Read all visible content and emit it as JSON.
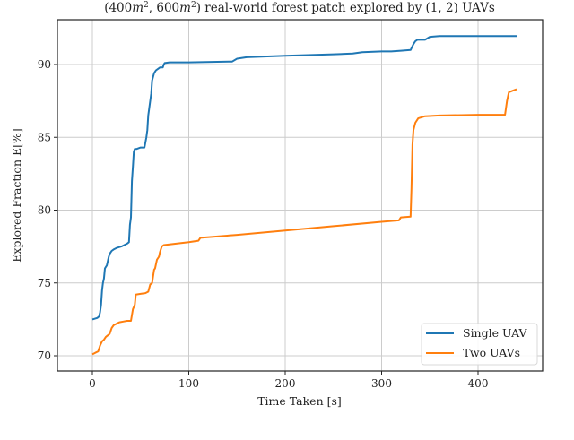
{
  "chart_data": {
    "type": "line",
    "title": "(400m², 600m²) real-world forest patch explored by (1, 2) UAVs",
    "xlabel": "Time Taken [s]",
    "ylabel": "Explored Fraction E[%]",
    "xlim": [
      -20,
      465
    ],
    "ylim": [
      69.0,
      92.7
    ],
    "xticks": [
      0,
      100,
      200,
      300,
      400
    ],
    "yticks": [
      70,
      75,
      80,
      85,
      90
    ],
    "grid": true,
    "legend_position": "lower right",
    "series": [
      {
        "name": "Single UAV",
        "color": "#1f77b4",
        "x": [
          0,
          5,
          7,
          8,
          9,
          10,
          11,
          12,
          13,
          14,
          15,
          17,
          18,
          20,
          22,
          25,
          30,
          33,
          36,
          38,
          39,
          40,
          41,
          42,
          43,
          44,
          46,
          50,
          54,
          56,
          57,
          58,
          60,
          61,
          62,
          64,
          66,
          68,
          70,
          73,
          74,
          75,
          80,
          100,
          145,
          150,
          160,
          200,
          250,
          270,
          280,
          300,
          305,
          310,
          320,
          330,
          333,
          335,
          337,
          345,
          350,
          360,
          400,
          440
        ],
        "y": [
          72.5,
          72.6,
          72.7,
          73.0,
          73.5,
          74.5,
          75.0,
          75.3,
          76.0,
          76.1,
          76.2,
          76.8,
          77.0,
          77.2,
          77.3,
          77.4,
          77.5,
          77.6,
          77.7,
          77.8,
          79.0,
          79.5,
          82.0,
          83.0,
          84.0,
          84.2,
          84.2,
          84.3,
          84.3,
          85.0,
          85.5,
          86.5,
          87.5,
          88.0,
          88.9,
          89.4,
          89.6,
          89.7,
          89.8,
          89.8,
          90.0,
          90.1,
          90.15,
          90.15,
          90.2,
          90.4,
          90.5,
          90.6,
          90.7,
          90.75,
          90.85,
          90.9,
          90.9,
          90.9,
          90.95,
          91.0,
          91.4,
          91.6,
          91.7,
          91.7,
          91.9,
          91.95,
          91.95,
          91.95
        ]
      },
      {
        "name": "Two UAVs",
        "color": "#ff7f0e",
        "x": [
          0,
          3,
          6,
          8,
          10,
          12,
          14,
          16,
          18,
          20,
          22,
          25,
          28,
          32,
          36,
          40,
          42,
          44,
          45,
          50,
          55,
          58,
          60,
          62,
          64,
          65,
          67,
          69,
          70,
          72,
          74,
          80,
          100,
          110,
          112,
          150,
          200,
          250,
          300,
          318,
          320,
          330,
          331,
          332,
          333,
          335,
          338,
          345,
          360,
          400,
          428,
          430,
          432,
          436,
          440
        ],
        "y": [
          70.1,
          70.2,
          70.3,
          70.7,
          71.0,
          71.1,
          71.3,
          71.4,
          71.5,
          71.9,
          72.1,
          72.2,
          72.3,
          72.35,
          72.4,
          72.4,
          73.2,
          73.5,
          74.2,
          74.25,
          74.3,
          74.4,
          74.9,
          75.0,
          75.9,
          76.0,
          76.6,
          76.8,
          77.1,
          77.5,
          77.6,
          77.65,
          77.8,
          77.9,
          78.1,
          78.3,
          78.6,
          78.9,
          79.2,
          79.3,
          79.5,
          79.55,
          81.5,
          84.5,
          85.5,
          86.0,
          86.3,
          86.45,
          86.5,
          86.55,
          86.55,
          87.5,
          88.1,
          88.2,
          88.3
        ]
      }
    ]
  },
  "title": {
    "text_prefix": "(400",
    "m1": "m",
    "sup1": "2",
    "sep": ", 600",
    "m2": "m",
    "sup2": "2",
    "suffix": ") real-world forest patch explored by (1, 2) UAVs"
  },
  "axes": {
    "xlabel": "Time Taken [s]",
    "ylabel": "Explored Fraction E[%]"
  },
  "legend": {
    "items": [
      {
        "label": "Single UAV",
        "color": "#1f77b4"
      },
      {
        "label": "Two UAVs",
        "color": "#ff7f0e"
      }
    ]
  }
}
